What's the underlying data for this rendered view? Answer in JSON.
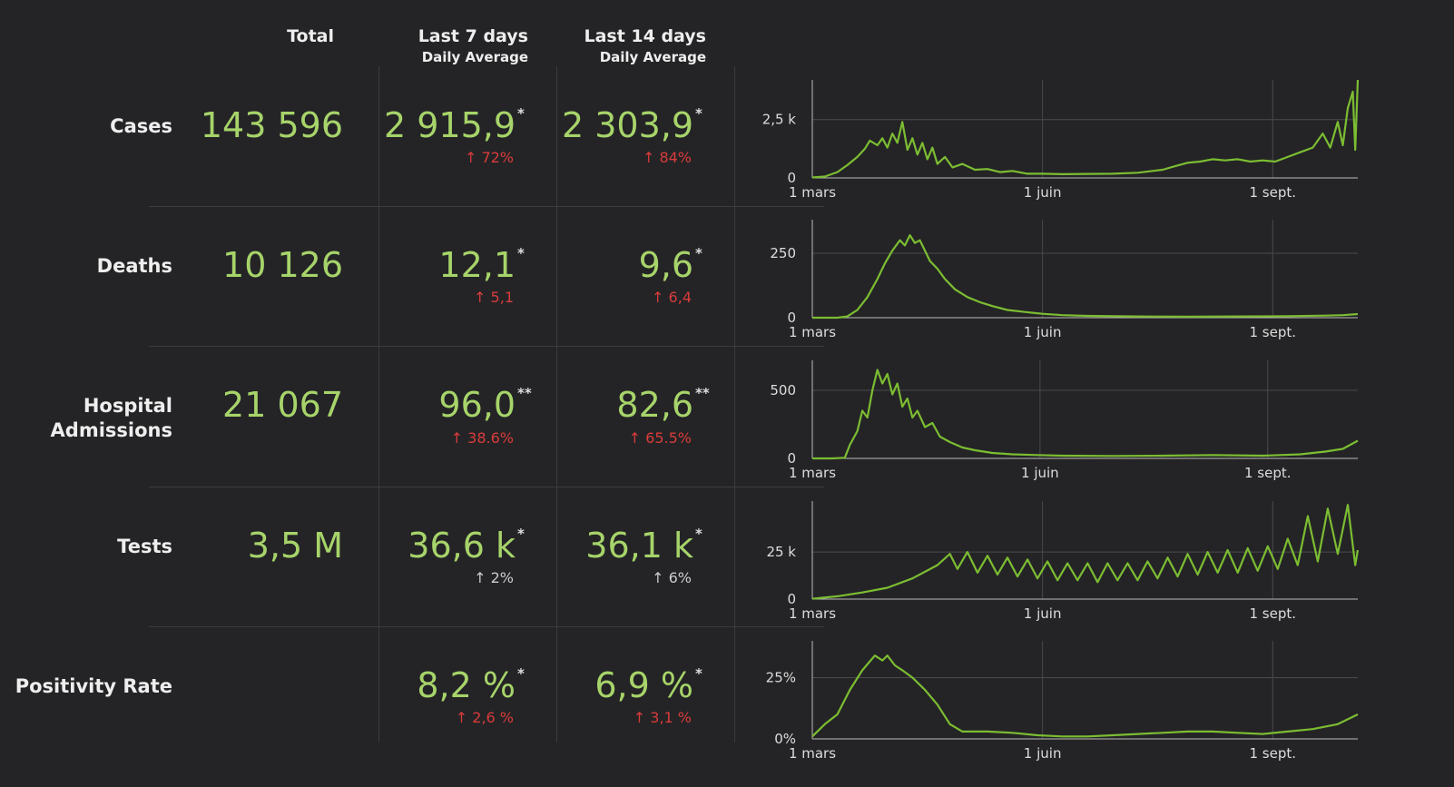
{
  "headers": {
    "total": "Total",
    "last7": "Last 7 days",
    "last7_sub": "Daily Average",
    "last14": "Last 14 days",
    "last14_sub": "Daily Average"
  },
  "colors": {
    "value": "#a7d46a",
    "increase": "#d93b3b",
    "neutral": "#cccccc",
    "line": "#7cbd32",
    "background": "#242426"
  },
  "rows": [
    {
      "label": "Cases",
      "total": "143 596",
      "avg7": "2 915,9",
      "avg7_mark": "*",
      "chg7": "72%",
      "chg7_color": "red",
      "avg14": "2 303,9",
      "avg14_mark": "*",
      "chg14": "84%",
      "chg14_color": "red"
    },
    {
      "label": "Deaths",
      "total": "10 126",
      "avg7": "12,1",
      "avg7_mark": "*",
      "chg7": "5,1",
      "chg7_color": "red",
      "avg14": "9,6",
      "avg14_mark": "*",
      "chg14": "6,4",
      "chg14_color": "red"
    },
    {
      "label_line1": "Hospital",
      "label_line2": "Admissions",
      "total": "21 067",
      "avg7": "96,0",
      "avg7_mark": "**",
      "chg7": "38.6%",
      "chg7_color": "red",
      "avg14": "82,6",
      "avg14_mark": "**",
      "chg14": "65.5%",
      "chg14_color": "red"
    },
    {
      "label": "Tests",
      "total": "3,5 M",
      "avg7": "36,6 k",
      "avg7_mark": "*",
      "chg7": "2%",
      "chg7_color": "grey",
      "avg14": "36,1 k",
      "avg14_mark": "*",
      "chg14": "6%",
      "chg14_color": "grey"
    },
    {
      "label": "Positivity Rate",
      "total": "",
      "avg7": "8,2 %",
      "avg7_mark": "*",
      "chg7": "2,6 %",
      "chg7_color": "red",
      "avg14": "6,9 %",
      "avg14_mark": "*",
      "chg14": "3,1 %",
      "chg14_color": "red"
    }
  ],
  "chart_data": [
    {
      "type": "line",
      "series_label": "Cases",
      "x_ticks": [
        "1 mars",
        "1 juin",
        "1 sept."
      ],
      "y_ticks": [
        "0",
        "2,5 k"
      ],
      "ylim": [
        0,
        4200
      ],
      "y_tick_values": [
        0,
        2500
      ],
      "x_range_days": [
        0,
        218
      ],
      "x_tick_days": [
        0,
        92,
        184
      ],
      "points": [
        [
          0,
          20
        ],
        [
          5,
          60
        ],
        [
          10,
          250
        ],
        [
          14,
          550
        ],
        [
          18,
          900
        ],
        [
          21,
          1250
        ],
        [
          23,
          1600
        ],
        [
          26,
          1400
        ],
        [
          28,
          1700
        ],
        [
          30,
          1300
        ],
        [
          32,
          1900
        ],
        [
          34,
          1500
        ],
        [
          36,
          2400
        ],
        [
          38,
          1200
        ],
        [
          40,
          1700
        ],
        [
          42,
          1000
        ],
        [
          44,
          1500
        ],
        [
          46,
          800
        ],
        [
          48,
          1300
        ],
        [
          50,
          600
        ],
        [
          53,
          900
        ],
        [
          56,
          450
        ],
        [
          60,
          600
        ],
        [
          65,
          350
        ],
        [
          70,
          380
        ],
        [
          75,
          250
        ],
        [
          80,
          300
        ],
        [
          86,
          180
        ],
        [
          92,
          180
        ],
        [
          100,
          160
        ],
        [
          110,
          170
        ],
        [
          120,
          180
        ],
        [
          130,
          220
        ],
        [
          140,
          350
        ],
        [
          145,
          500
        ],
        [
          150,
          650
        ],
        [
          155,
          700
        ],
        [
          160,
          800
        ],
        [
          165,
          750
        ],
        [
          170,
          800
        ],
        [
          175,
          700
        ],
        [
          180,
          750
        ],
        [
          185,
          700
        ],
        [
          190,
          900
        ],
        [
          195,
          1100
        ],
        [
          200,
          1300
        ],
        [
          204,
          1900
        ],
        [
          207,
          1300
        ],
        [
          210,
          2400
        ],
        [
          212,
          1400
        ],
        [
          214,
          3000
        ],
        [
          216,
          3700
        ],
        [
          217,
          1200
        ],
        [
          218,
          4200
        ]
      ]
    },
    {
      "type": "line",
      "series_label": "Deaths",
      "x_ticks": [
        "1 mars",
        "1 juin",
        "1 sept."
      ],
      "y_ticks": [
        "0",
        "250"
      ],
      "ylim": [
        0,
        380
      ],
      "y_tick_values": [
        0,
        250
      ],
      "x_range_days": [
        0,
        218
      ],
      "x_tick_days": [
        0,
        92,
        184
      ],
      "points": [
        [
          0,
          0
        ],
        [
          10,
          0
        ],
        [
          14,
          5
        ],
        [
          18,
          30
        ],
        [
          22,
          80
        ],
        [
          26,
          150
        ],
        [
          29,
          210
        ],
        [
          32,
          260
        ],
        [
          35,
          300
        ],
        [
          37,
          280
        ],
        [
          39,
          320
        ],
        [
          41,
          290
        ],
        [
          43,
          300
        ],
        [
          45,
          260
        ],
        [
          47,
          220
        ],
        [
          50,
          190
        ],
        [
          53,
          150
        ],
        [
          57,
          110
        ],
        [
          62,
          80
        ],
        [
          67,
          60
        ],
        [
          72,
          45
        ],
        [
          78,
          30
        ],
        [
          85,
          22
        ],
        [
          92,
          15
        ],
        [
          100,
          10
        ],
        [
          110,
          7
        ],
        [
          130,
          5
        ],
        [
          150,
          4
        ],
        [
          170,
          5
        ],
        [
          190,
          6
        ],
        [
          205,
          8
        ],
        [
          212,
          10
        ],
        [
          218,
          14
        ]
      ]
    },
    {
      "type": "line",
      "series_label": "Hospital Admissions",
      "x_ticks": [
        "1 mars",
        "1 juin",
        "1 sept."
      ],
      "y_ticks": [
        "0",
        "500"
      ],
      "ylim": [
        0,
        720
      ],
      "y_tick_values": [
        0,
        500
      ],
      "x_range_days": [
        0,
        218
      ],
      "x_tick_days": [
        0,
        91,
        182
      ],
      "points": [
        [
          0,
          0
        ],
        [
          8,
          0
        ],
        [
          13,
          5
        ],
        [
          15,
          100
        ],
        [
          18,
          200
        ],
        [
          20,
          350
        ],
        [
          22,
          300
        ],
        [
          24,
          500
        ],
        [
          26,
          650
        ],
        [
          28,
          550
        ],
        [
          30,
          620
        ],
        [
          32,
          470
        ],
        [
          34,
          550
        ],
        [
          36,
          380
        ],
        [
          38,
          440
        ],
        [
          40,
          300
        ],
        [
          42,
          350
        ],
        [
          45,
          230
        ],
        [
          48,
          260
        ],
        [
          51,
          160
        ],
        [
          55,
          120
        ],
        [
          60,
          80
        ],
        [
          65,
          60
        ],
        [
          72,
          40
        ],
        [
          80,
          30
        ],
        [
          90,
          25
        ],
        [
          100,
          20
        ],
        [
          120,
          18
        ],
        [
          140,
          20
        ],
        [
          160,
          25
        ],
        [
          180,
          20
        ],
        [
          195,
          30
        ],
        [
          205,
          50
        ],
        [
          212,
          70
        ],
        [
          218,
          130
        ]
      ]
    },
    {
      "type": "line",
      "series_label": "Tests",
      "x_ticks": [
        "1 mars",
        "1 juin",
        "1 sept."
      ],
      "y_ticks": [
        "0",
        "25 k"
      ],
      "ylim": [
        0,
        52000
      ],
      "y_tick_values": [
        0,
        25000
      ],
      "x_range_days": [
        0,
        218
      ],
      "x_tick_days": [
        0,
        92,
        184
      ],
      "points": [
        [
          0,
          200
        ],
        [
          10,
          1500
        ],
        [
          20,
          3500
        ],
        [
          30,
          6000
        ],
        [
          40,
          11000
        ],
        [
          50,
          18000
        ],
        [
          55,
          24000
        ],
        [
          58,
          16000
        ],
        [
          62,
          25000
        ],
        [
          66,
          14000
        ],
        [
          70,
          23000
        ],
        [
          74,
          13000
        ],
        [
          78,
          22000
        ],
        [
          82,
          12000
        ],
        [
          86,
          21000
        ],
        [
          90,
          11000
        ],
        [
          94,
          20000
        ],
        [
          98,
          10000
        ],
        [
          102,
          19000
        ],
        [
          106,
          10000
        ],
        [
          110,
          19000
        ],
        [
          114,
          9000
        ],
        [
          118,
          19000
        ],
        [
          122,
          10000
        ],
        [
          126,
          19000
        ],
        [
          130,
          10000
        ],
        [
          134,
          20000
        ],
        [
          138,
          11000
        ],
        [
          142,
          22000
        ],
        [
          146,
          12000
        ],
        [
          150,
          24000
        ],
        [
          154,
          13000
        ],
        [
          158,
          25000
        ],
        [
          162,
          14000
        ],
        [
          166,
          26000
        ],
        [
          170,
          14000
        ],
        [
          174,
          27000
        ],
        [
          178,
          15000
        ],
        [
          182,
          28000
        ],
        [
          186,
          16000
        ],
        [
          190,
          32000
        ],
        [
          194,
          18000
        ],
        [
          198,
          44000
        ],
        [
          202,
          20000
        ],
        [
          206,
          48000
        ],
        [
          210,
          24000
        ],
        [
          214,
          50000
        ],
        [
          217,
          18000
        ],
        [
          218,
          26000
        ]
      ]
    },
    {
      "type": "line",
      "series_label": "Positivity Rate",
      "x_ticks": [
        "1 mars",
        "1 juin",
        "1 sept."
      ],
      "y_ticks": [
        "0%",
        "25%"
      ],
      "ylim": [
        0,
        40
      ],
      "y_tick_values": [
        0,
        25
      ],
      "x_range_days": [
        0,
        218
      ],
      "x_tick_days": [
        0,
        92,
        184
      ],
      "points": [
        [
          0,
          1
        ],
        [
          5,
          6
        ],
        [
          10,
          10
        ],
        [
          15,
          20
        ],
        [
          20,
          28
        ],
        [
          25,
          34
        ],
        [
          28,
          32
        ],
        [
          30,
          34
        ],
        [
          33,
          30
        ],
        [
          36,
          28
        ],
        [
          40,
          25
        ],
        [
          45,
          20
        ],
        [
          50,
          14
        ],
        [
          55,
          6
        ],
        [
          60,
          3
        ],
        [
          70,
          3
        ],
        [
          80,
          2.5
        ],
        [
          90,
          1.5
        ],
        [
          100,
          1
        ],
        [
          110,
          1
        ],
        [
          120,
          1.5
        ],
        [
          130,
          2
        ],
        [
          140,
          2.5
        ],
        [
          150,
          3
        ],
        [
          160,
          3
        ],
        [
          170,
          2.5
        ],
        [
          180,
          2
        ],
        [
          190,
          3
        ],
        [
          200,
          4
        ],
        [
          210,
          6
        ],
        [
          218,
          10
        ]
      ]
    }
  ]
}
